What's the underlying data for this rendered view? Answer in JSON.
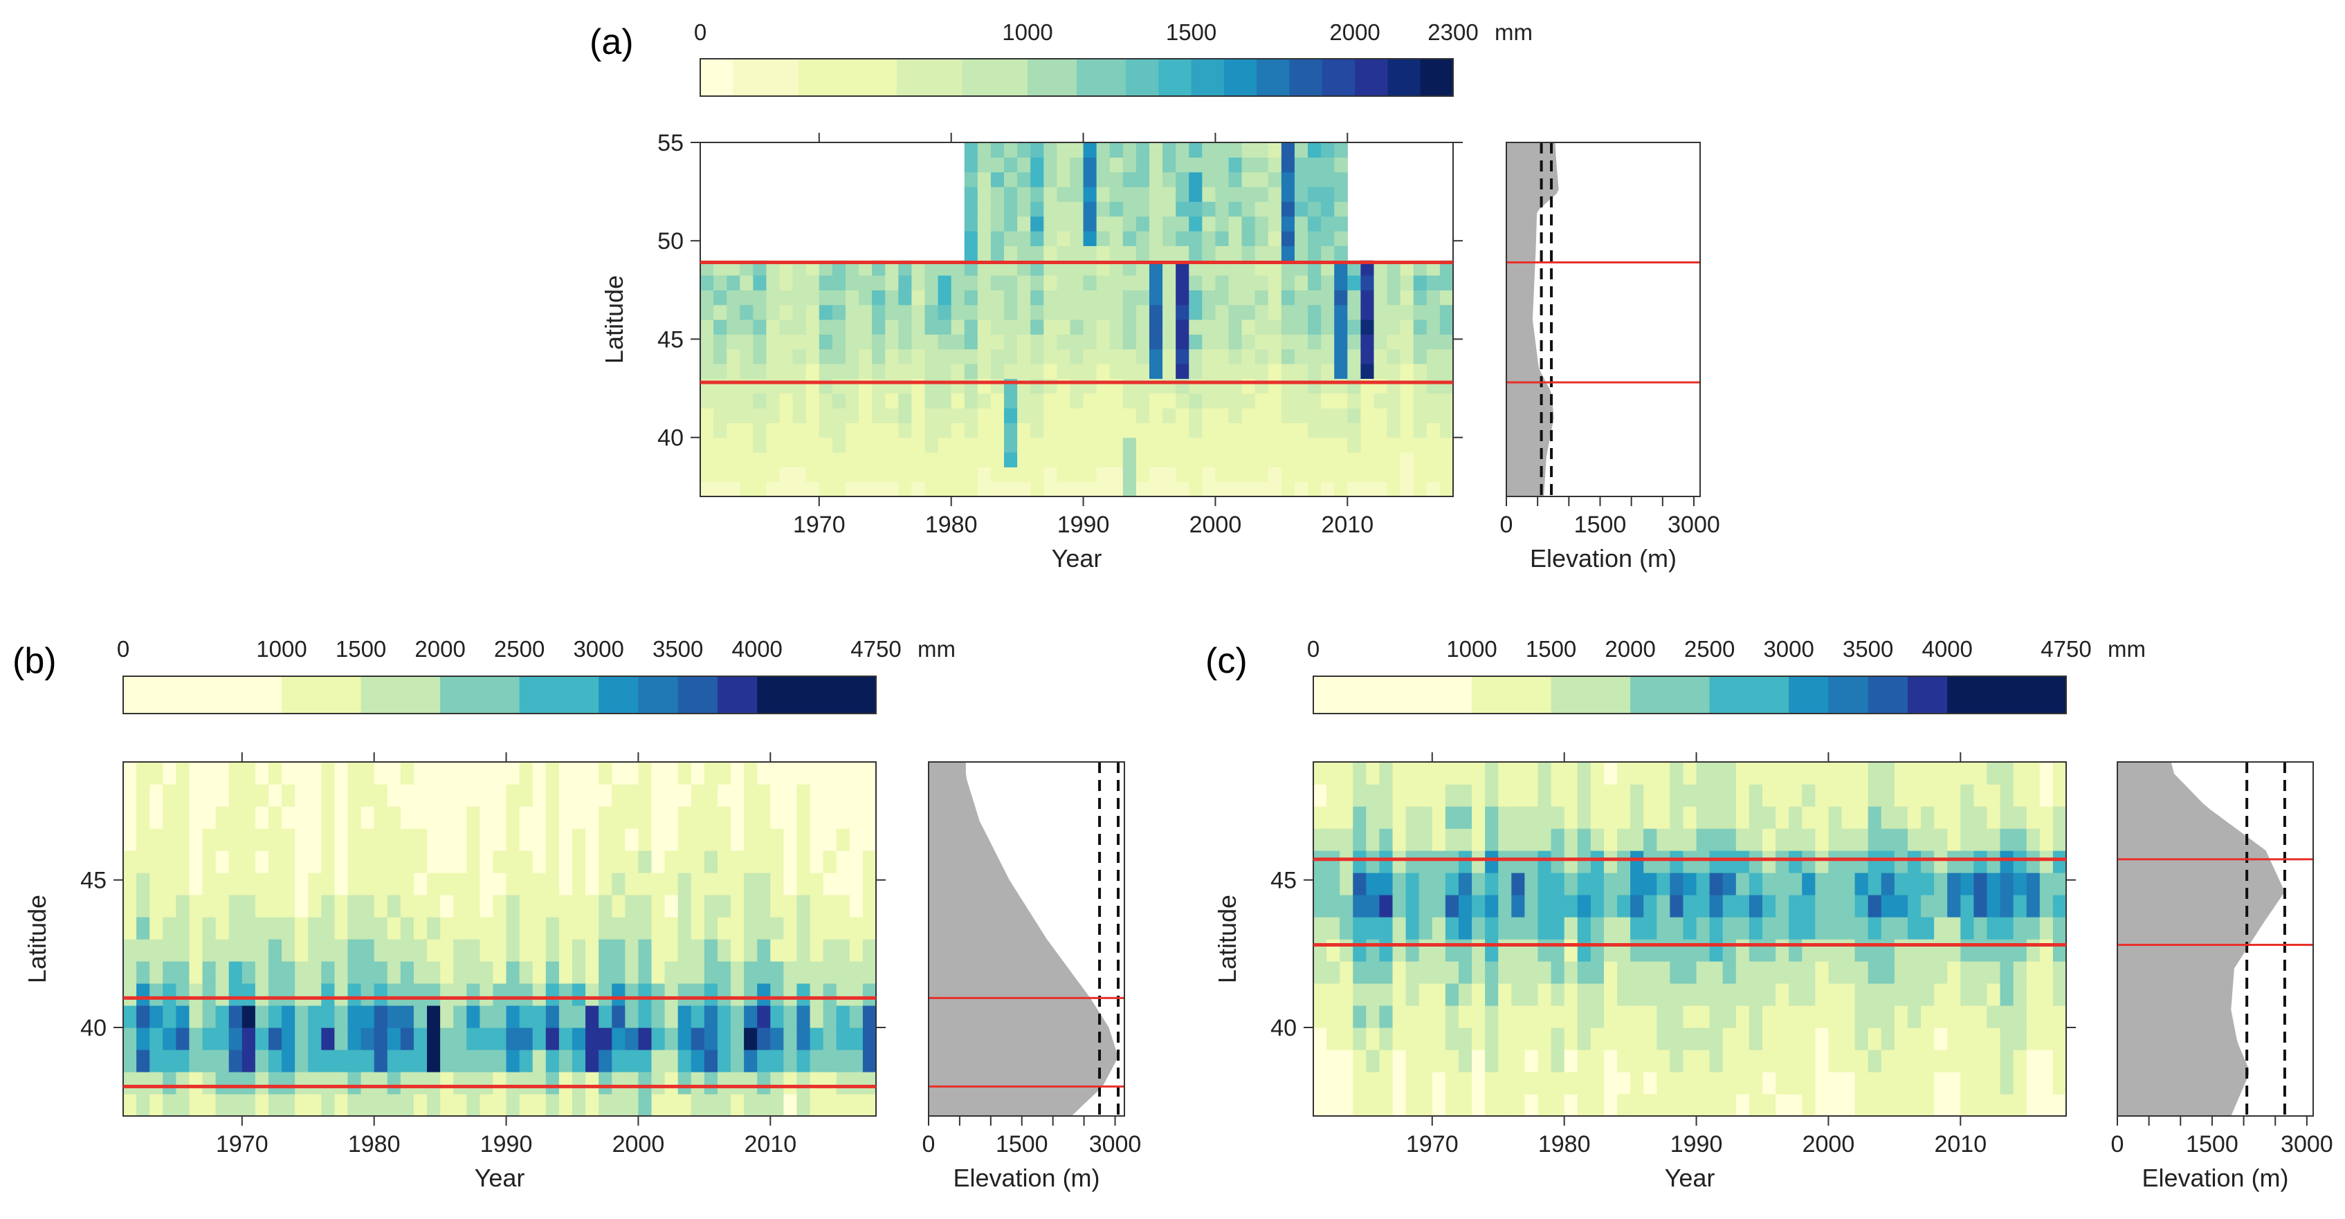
{
  "colorscales": {
    "a": {
      "unit": "mm",
      "ticks": [
        "0",
        "1000",
        "1500",
        "2000",
        "2300"
      ],
      "tick_values": [
        0,
        1000,
        1500,
        2000,
        2300
      ],
      "bins": [
        0,
        100,
        300,
        600,
        800,
        1000,
        1150,
        1300,
        1400,
        1500,
        1600,
        1700,
        1800,
        1900,
        2000,
        2100,
        2200,
        2300
      ],
      "colors": [
        "#ffffd9",
        "#f6fbc6",
        "#edf8b1",
        "#d9f0b3",
        "#c7e9b4",
        "#a8ddb5",
        "#7fcdbb",
        "#62c2bf",
        "#41b6c4",
        "#2ea3c2",
        "#1d91c0",
        "#2078b4",
        "#225ea8",
        "#2349a0",
        "#253494",
        "#0f2b78",
        "#081d58"
      ]
    },
    "bc": {
      "unit": "mm",
      "ticks": [
        "0",
        "1000",
        "1500",
        "2000",
        "2500",
        "3000",
        "3500",
        "4000",
        "4750"
      ],
      "tick_values": [
        0,
        1000,
        1500,
        2000,
        2500,
        3000,
        3500,
        4000,
        4750
      ],
      "bins": [
        0,
        1000,
        1500,
        2000,
        2500,
        3000,
        3250,
        3500,
        3750,
        4000,
        4750
      ],
      "colors": [
        "#ffffd9",
        "#edf8b1",
        "#c7e9b4",
        "#7fcdbb",
        "#41b6c4",
        "#1d91c0",
        "#2078b4",
        "#225ea8",
        "#253494",
        "#081d58"
      ]
    }
  },
  "chart_data": [
    {
      "panel_label": "(a)",
      "type": "heatmap",
      "colorscale": "a",
      "xlabel": "Year",
      "ylabel": "Latitude",
      "xlim": [
        1961,
        2018
      ],
      "ylim": [
        37,
        55
      ],
      "xticks": [
        1970,
        1980,
        1990,
        2000,
        2010
      ],
      "yticks": [
        40,
        45,
        50,
        55
      ],
      "data_extent": {
        "full_lat": [
          37,
          48.9
        ],
        "north_years": [
          1981,
          2010
        ],
        "north_lat": [
          48.9,
          55
        ]
      },
      "band_edges_lat": [
        42.8,
        48.9
      ],
      "base_by_lat": [
        [
          37,
          250
        ],
        [
          38.5,
          400
        ],
        [
          40,
          520
        ],
        [
          41.5,
          650
        ],
        [
          43,
          720
        ],
        [
          44.5,
          900
        ],
        [
          46,
          1000
        ],
        [
          47.5,
          1050
        ],
        [
          48.9,
          1000
        ],
        [
          50,
          1100
        ],
        [
          52,
          1200
        ],
        [
          55,
          1150
        ]
      ],
      "year_anomalies": [
        {
          "year": 1984,
          "lat_range": [
            38.5,
            42.8
          ],
          "value": 1450
        },
        {
          "year": 1993,
          "lat_range": [
            37,
            40
          ],
          "value": 1100
        },
        {
          "year": 1995,
          "lat_range": [
            43,
            48.9
          ],
          "value": 1900
        },
        {
          "year": 1997,
          "lat_range": [
            43,
            48.9
          ],
          "value": 2100
        },
        {
          "year": 1990,
          "lat_range": [
            50,
            55
          ],
          "value": 1750
        },
        {
          "year": 2005,
          "lat_range": [
            48.9,
            55
          ],
          "value": 1900
        },
        {
          "year": 2009,
          "lat_range": [
            43,
            48.9
          ],
          "value": 1850
        },
        {
          "year": 2011,
          "lat_range": [
            43,
            48.9
          ],
          "value": 2150
        }
      ],
      "elevation": {
        "xlabel": "Elevation (m)",
        "xlim": [
          0,
          3100
        ],
        "xticks": [
          0,
          1500,
          3000
        ],
        "profile_lat_elev": [
          [
            37,
            600
          ],
          [
            39,
            640
          ],
          [
            41,
            760
          ],
          [
            42.3,
            720
          ],
          [
            43.5,
            520
          ],
          [
            46,
            420
          ],
          [
            49.5,
            470
          ],
          [
            51.5,
            490
          ],
          [
            52.5,
            840
          ],
          [
            54,
            800
          ],
          [
            55,
            780
          ]
        ],
        "dashed_elev": [
          560,
          720
        ]
      }
    },
    {
      "panel_label": "(b)",
      "type": "heatmap",
      "colorscale": "bc",
      "xlabel": "Year",
      "ylabel": "Latitude",
      "xlim": [
        1961,
        2018
      ],
      "ylim": [
        37,
        49
      ],
      "xticks": [
        1970,
        1980,
        1990,
        2000,
        2010
      ],
      "yticks": [
        40,
        45
      ],
      "band_edges_lat": [
        38,
        41
      ],
      "base_by_lat": [
        [
          37,
          1300
        ],
        [
          38,
          1700
        ],
        [
          39,
          2700
        ],
        [
          39.6,
          3000
        ],
        [
          40.5,
          2700
        ],
        [
          41.5,
          2000
        ],
        [
          43,
          1550
        ],
        [
          45,
          1150
        ],
        [
          49,
          850
        ]
      ],
      "year_anomalies": [
        {
          "year": 1970,
          "lat_range": [
            38.8,
            40.4
          ],
          "value": 4100
        },
        {
          "year": 1980,
          "lat_range": [
            38.8,
            40.4
          ],
          "value": 3800
        },
        {
          "year": 1984,
          "lat_range": [
            38.4,
            40.6
          ],
          "value": 4700
        },
        {
          "year": 1996,
          "lat_range": [
            38.8,
            40.4
          ],
          "value": 4000
        },
        {
          "year": 2008,
          "lat_range": [
            38.8,
            40.4
          ],
          "value": 3700
        },
        {
          "year": 2017,
          "lat_range": [
            38.8,
            40.4
          ],
          "value": 3700
        }
      ],
      "elevation": {
        "xlabel": "Elevation (m)",
        "xlim": [
          0,
          3150
        ],
        "xticks": [
          0,
          1500,
          3000
        ],
        "profile_lat_elev": [
          [
            37,
            2300
          ],
          [
            38,
            2800
          ],
          [
            39,
            3050
          ],
          [
            40,
            2900
          ],
          [
            41,
            2600
          ],
          [
            43,
            1900
          ],
          [
            45,
            1300
          ],
          [
            47,
            820
          ],
          [
            48.5,
            600
          ],
          [
            49,
            600
          ]
        ],
        "dashed_elev": [
          2750,
          3050
        ]
      }
    },
    {
      "panel_label": "(c)",
      "type": "heatmap",
      "colorscale": "bc",
      "xlabel": "Year",
      "ylabel": "Latitude",
      "xlim": [
        1961,
        2018
      ],
      "ylim": [
        37,
        49
      ],
      "xticks": [
        1970,
        1980,
        1990,
        2000,
        2010
      ],
      "yticks": [
        40,
        45
      ],
      "band_edges_lat": [
        42.8,
        45.7
      ],
      "base_by_lat": [
        [
          37,
          1000
        ],
        [
          39,
          1250
        ],
        [
          41,
          1550
        ],
        [
          42.8,
          2100
        ],
        [
          44,
          2800
        ],
        [
          44.6,
          2900
        ],
        [
          45.7,
          2350
        ],
        [
          46.5,
          1700
        ],
        [
          49,
          1250
        ]
      ],
      "year_anomalies": [
        {
          "year": 1972,
          "lat_range": [
            43.5,
            45.4
          ],
          "value": 3350
        },
        {
          "year": 1976,
          "lat_range": [
            43.5,
            45.6
          ],
          "value": 3700
        },
        {
          "year": 2009,
          "lat_range": [
            43.8,
            45.4
          ],
          "value": 3550
        },
        {
          "year": 2011,
          "lat_range": [
            43.5,
            45.6
          ],
          "value": 3750
        },
        {
          "year": 2015,
          "lat_range": [
            43.8,
            45.4
          ],
          "value": 3450
        }
      ],
      "elevation": {
        "xlabel": "Elevation (m)",
        "xlim": [
          0,
          3100
        ],
        "xticks": [
          0,
          1500,
          3000
        ],
        "profile_lat_elev": [
          [
            37,
            1800
          ],
          [
            38.5,
            2100
          ],
          [
            39.5,
            1900
          ],
          [
            40.6,
            1800
          ],
          [
            42,
            1850
          ],
          [
            43.5,
            2300
          ],
          [
            44.6,
            2650
          ],
          [
            46,
            2350
          ],
          [
            47.5,
            1400
          ],
          [
            48.6,
            900
          ],
          [
            49,
            850
          ]
        ],
        "dashed_elev": [
          2050,
          2650
        ]
      }
    }
  ]
}
